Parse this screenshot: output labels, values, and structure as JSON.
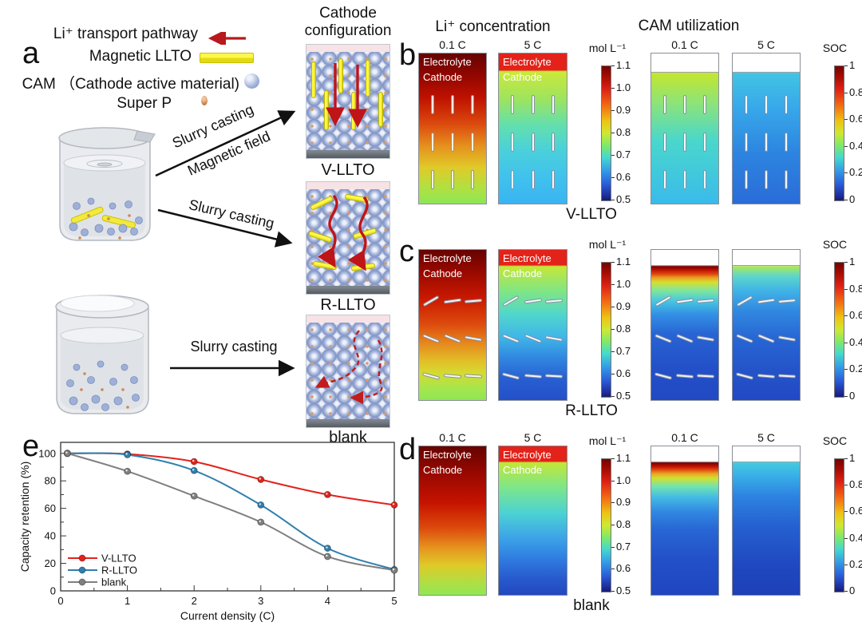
{
  "panel_a": {
    "letter": "a",
    "legend": [
      {
        "label": "Li⁺ transport pathway",
        "icon": "li-transport-arrow"
      },
      {
        "label": "Magnetic LLTO",
        "icon": "magnetic-llto-bar"
      },
      {
        "label": "CAM （Cathode active material)",
        "icon": "cam-sphere"
      },
      {
        "label": "Super P",
        "icon": "super-p-dot"
      }
    ],
    "process_arrows": [
      {
        "lines": [
          "Slurry casting",
          "Magnetic field"
        ]
      },
      {
        "lines": [
          "Slurry casting"
        ]
      },
      {
        "lines": [
          "Slurry casting"
        ]
      }
    ],
    "config_title": [
      "Cathode",
      "configuration"
    ],
    "configs": [
      {
        "caption": "V-LLTO"
      },
      {
        "caption": "R-LLTO"
      },
      {
        "caption": "blank"
      }
    ]
  },
  "colorbar_gradient": [
    [
      "#730402",
      0
    ],
    [
      "#a80c03",
      8
    ],
    [
      "#dd2015",
      17
    ],
    [
      "#f26a14",
      29
    ],
    [
      "#eec414",
      41
    ],
    [
      "#cfe832",
      50
    ],
    [
      "#7fe96a",
      59
    ],
    [
      "#45d8cf",
      68
    ],
    [
      "#349ae6",
      78
    ],
    [
      "#2a5cd8",
      88
    ],
    [
      "#202f9e",
      96
    ],
    [
      "#161c72",
      100
    ]
  ],
  "sim_panels": [
    {
      "letter": "b",
      "caption": "V-LLTO",
      "group_headers": [
        "Li⁺ concentration",
        "CAM utilization"
      ],
      "rate_headers": [
        "0.1 C",
        "5 C",
        "0.1 C",
        "5 C"
      ],
      "rod_style": "vertical",
      "maps": [
        {
          "overlay": [
            "Electrolyte",
            "Cathode"
          ],
          "stops": [
            [
              "#660300",
              0
            ],
            [
              "#8f0600",
              14
            ],
            [
              "#c01200",
              30
            ],
            [
              "#dc4a0e",
              47
            ],
            [
              "#e6921e",
              62
            ],
            [
              "#e0ca28",
              76
            ],
            [
              "#b2e040",
              89
            ],
            [
              "#8fe655",
              100
            ]
          ]
        },
        {
          "overlay": [
            "Electrolyte",
            "Cathode"
          ],
          "stops": [
            [
              "#e32219",
              0
            ],
            [
              "#e32219",
              11
            ],
            [
              "#cbe83a",
              12
            ],
            [
              "#9fe45e",
              30
            ],
            [
              "#62dfae",
              48
            ],
            [
              "#4ad0dc",
              65
            ],
            [
              "#41c2ec",
              82
            ],
            [
              "#39b4f2",
              100
            ]
          ]
        },
        {
          "overlay": [],
          "sep": 12,
          "stops": [
            [
              "#ffffff",
              0
            ],
            [
              "#ffffff",
              12
            ],
            [
              "#c4e62e",
              13
            ],
            [
              "#8fe476",
              32
            ],
            [
              "#4ad7cc",
              58
            ],
            [
              "#39bbea",
              100
            ]
          ]
        },
        {
          "overlay": [],
          "sep": 12,
          "stops": [
            [
              "#ffffff",
              0
            ],
            [
              "#ffffff",
              12
            ],
            [
              "#41c4e4",
              13
            ],
            [
              "#38a8ea",
              36
            ],
            [
              "#2d85e0",
              66
            ],
            [
              "#2a6cd8",
              100
            ]
          ]
        }
      ],
      "colorbars": [
        {
          "title": "mol L⁻¹",
          "ticks": [
            "1.1",
            "1.0",
            "0.9",
            "0.8",
            "0.7",
            "0.6",
            "0.5"
          ]
        },
        {
          "title": "SOC",
          "ticks": [
            "1",
            "0.8",
            "0.6",
            "0.4",
            "0.2",
            "0"
          ]
        }
      ]
    },
    {
      "letter": "c",
      "caption": "R-LLTO",
      "group_headers": [],
      "rate_headers": [],
      "rod_style": "slanted",
      "maps": [
        {
          "overlay": [
            "Electrolyte",
            "Cathode"
          ],
          "stops": [
            [
              "#660300",
              0
            ],
            [
              "#9c0900",
              16
            ],
            [
              "#cb1a00",
              33
            ],
            [
              "#dd4d0e",
              50
            ],
            [
              "#e68c1e",
              63
            ],
            [
              "#e2bf27",
              74
            ],
            [
              "#d6da30",
              82
            ],
            [
              "#a6e64c",
              92
            ],
            [
              "#8fe655",
              100
            ]
          ]
        },
        {
          "overlay": [
            "Electrolyte",
            "Cathode"
          ],
          "stops": [
            [
              "#e32219",
              0
            ],
            [
              "#e32219",
              10
            ],
            [
              "#c6e738",
              11
            ],
            [
              "#82e682",
              27
            ],
            [
              "#50d6cc",
              43
            ],
            [
              "#40b6e8",
              58
            ],
            [
              "#3087e0",
              72
            ],
            [
              "#285fd2",
              86
            ],
            [
              "#2450c8",
              100
            ]
          ]
        },
        {
          "overlay": [],
          "sep": 10,
          "stops": [
            [
              "#ffffff",
              0
            ],
            [
              "#ffffff",
              10
            ],
            [
              "#740300",
              11
            ],
            [
              "#b50d00",
              13
            ],
            [
              "#e04510",
              16
            ],
            [
              "#e8a020",
              18.5
            ],
            [
              "#d6de30",
              21.5
            ],
            [
              "#7fe69c",
              27
            ],
            [
              "#48c6e0",
              34
            ],
            [
              "#3390e4",
              43
            ],
            [
              "#2864d4",
              56
            ],
            [
              "#2350c8",
              78
            ],
            [
              "#2149c4",
              100
            ]
          ]
        },
        {
          "overlay": [],
          "sep": 10,
          "stops": [
            [
              "#ffffff",
              0
            ],
            [
              "#ffffff",
              10
            ],
            [
              "#aee658",
              11
            ],
            [
              "#60d8c6",
              17
            ],
            [
              "#40b4e6",
              27
            ],
            [
              "#3187e0",
              41
            ],
            [
              "#2766d4",
              59
            ],
            [
              "#2452c8",
              82
            ],
            [
              "#2249c6",
              100
            ]
          ]
        }
      ],
      "colorbars": [
        {
          "title": "mol L⁻¹",
          "ticks": [
            "1.1",
            "1.0",
            "0.9",
            "0.8",
            "0.7",
            "0.6",
            "0.5"
          ]
        },
        {
          "title": "SOC",
          "ticks": [
            "1",
            "0.8",
            "0.6",
            "0.4",
            "0.2",
            "0"
          ]
        }
      ]
    },
    {
      "letter": "d",
      "caption": "blank",
      "group_headers": [],
      "rate_headers": [
        "0.1 C",
        "5 C",
        "0.1 C",
        "5 C"
      ],
      "rod_style": "none",
      "maps": [
        {
          "overlay": [
            "Electrolyte",
            "Cathode"
          ],
          "stops": [
            [
              "#660300",
              0
            ],
            [
              "#970800",
              18
            ],
            [
              "#c61300",
              38
            ],
            [
              "#dc4a0c",
              55
            ],
            [
              "#e6921e",
              68
            ],
            [
              "#dfca28",
              80
            ],
            [
              "#aede44",
              92
            ],
            [
              "#92e754",
              100
            ]
          ]
        },
        {
          "overlay": [
            "Electrolyte",
            "Cathode"
          ],
          "stops": [
            [
              "#e32219",
              0
            ],
            [
              "#e32219",
              10
            ],
            [
              "#c2e738",
              11
            ],
            [
              "#7ce68c",
              28
            ],
            [
              "#4cd2d4",
              45
            ],
            [
              "#3ca2e8",
              62
            ],
            [
              "#2f7ce0",
              76
            ],
            [
              "#2758cc",
              90
            ],
            [
              "#2348c0",
              100
            ]
          ]
        },
        {
          "overlay": [],
          "sep": 10,
          "stops": [
            [
              "#ffffff",
              0
            ],
            [
              "#ffffff",
              10
            ],
            [
              "#740300",
              11
            ],
            [
              "#c11000",
              13.5
            ],
            [
              "#e35012",
              16
            ],
            [
              "#e8aa22",
              18.5
            ],
            [
              "#cfe032",
              21.5
            ],
            [
              "#72e4ae",
              27
            ],
            [
              "#44bce4",
              34
            ],
            [
              "#3188e2",
              44
            ],
            [
              "#2866d4",
              56
            ],
            [
              "#2350c8",
              76
            ],
            [
              "#1f46c0",
              100
            ]
          ]
        },
        {
          "overlay": [],
          "sep": 10,
          "stops": [
            [
              "#ffffff",
              0
            ],
            [
              "#ffffff",
              10
            ],
            [
              "#44cade",
              11
            ],
            [
              "#39aee8",
              20
            ],
            [
              "#2d82e0",
              34
            ],
            [
              "#2560d0",
              54
            ],
            [
              "#2048c0",
              80
            ],
            [
              "#1e40b8",
              100
            ]
          ]
        }
      ],
      "colorbars": [
        {
          "title": "mol L⁻¹",
          "ticks": [
            "1.1",
            "1.0",
            "0.9",
            "0.8",
            "0.7",
            "0.6",
            "0.5"
          ]
        },
        {
          "title": "SOC",
          "ticks": [
            "1",
            "0.8",
            "0.6",
            "0.4",
            "0.2",
            "0"
          ]
        }
      ]
    }
  ],
  "chart_panel_letter": "e",
  "chart_data": {
    "type": "line",
    "x": [
      0.1,
      1,
      2,
      3,
      4,
      5
    ],
    "series": [
      {
        "name": "V-LLTO",
        "color": "#e2231a",
        "values": [
          100,
          99.5,
          94,
          81,
          70,
          62.5
        ]
      },
      {
        "name": "R-LLTO",
        "color": "#2e7fae",
        "values": [
          100,
          99,
          87.5,
          62.5,
          31,
          15.5
        ]
      },
      {
        "name": "blank",
        "color": "#7f7f7f",
        "values": [
          100,
          87,
          69,
          50,
          25,
          15
        ]
      }
    ],
    "xlabel": "Current density (C)",
    "ylabel": "Capacity retention (%)",
    "xlim": [
      0,
      5
    ],
    "ylim": [
      0,
      108
    ],
    "xticks": [
      0,
      1,
      2,
      3,
      4,
      5
    ],
    "yticks": [
      0,
      20,
      40,
      60,
      80,
      100
    ],
    "grid": false,
    "legend_position": "lower-left",
    "marker": "circle"
  }
}
